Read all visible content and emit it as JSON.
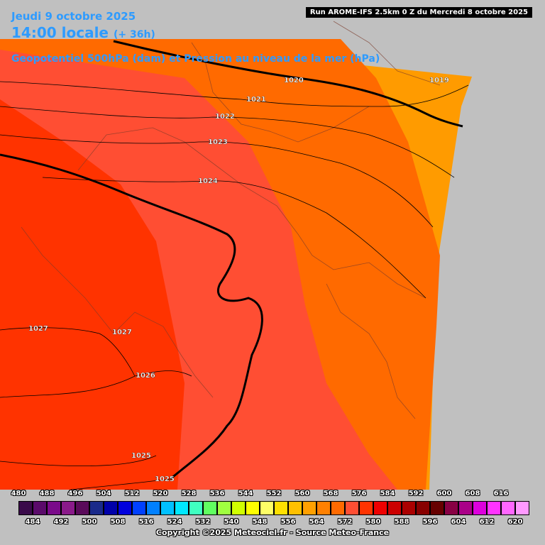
{
  "header": {
    "date": "Jeudi 9 octobre 2025",
    "time": "14:00 locale",
    "offset": "(+ 36h)",
    "field_title": "Geopotentiel 500hPa (dam) et Pression au niveau de la mer (hPa)",
    "run_info": "Run AROME-IFS 2.5km 0 Z du Mercredi 8 octobre 2025"
  },
  "footer": {
    "copyright": "Copyright ©2025 Meteociel.fr - Source Meteo-France"
  },
  "isobars": [
    {
      "label": "1020"
    },
    {
      "label": "1019"
    },
    {
      "label": "1021"
    },
    {
      "label": "1022"
    },
    {
      "label": "1023"
    },
    {
      "label": "1024"
    },
    {
      "label": "1027"
    },
    {
      "label": "1027"
    },
    {
      "label": "1026"
    },
    {
      "label": "1025"
    },
    {
      "label": "1025"
    }
  ],
  "colors": {
    "background": "#c0c0c0",
    "band_580": "#ff3300",
    "band_576": "#ff4e33",
    "band_572": "#ff6a00",
    "band_568": "#ff9b00",
    "title_blue": "#2e9bff"
  },
  "scale": {
    "top_labels": [
      "480",
      "488",
      "496",
      "504",
      "512",
      "520",
      "528",
      "536",
      "544",
      "552",
      "560",
      "568",
      "576",
      "584",
      "592",
      "600",
      "608",
      "616"
    ],
    "bottom_labels": [
      "484",
      "492",
      "500",
      "508",
      "516",
      "524",
      "532",
      "540",
      "548",
      "556",
      "564",
      "572",
      "580",
      "588",
      "596",
      "604",
      "612",
      "620"
    ],
    "colors": [
      "#3a0a4a",
      "#5a0a6a",
      "#7a0a8a",
      "#8a1a8a",
      "#5a0a5a",
      "#1a2a8a",
      "#0000aa",
      "#0000dd",
      "#0040ff",
      "#0080ff",
      "#00c0ff",
      "#00e8ff",
      "#40ffc0",
      "#60ff60",
      "#a0ff40",
      "#d0ff00",
      "#ffff00",
      "#ffff66",
      "#ffe000",
      "#ffc000",
      "#ffa000",
      "#ff8000",
      "#ff6a00",
      "#ff4e33",
      "#ff3300",
      "#ee0000",
      "#cc0000",
      "#aa0000",
      "#880000",
      "#660000",
      "#880044",
      "#aa0088",
      "#dd00dd",
      "#ff33ff",
      "#ff66ff",
      "#ff99ff"
    ]
  }
}
